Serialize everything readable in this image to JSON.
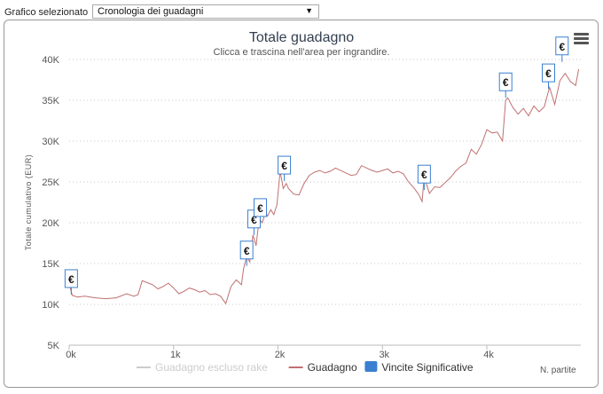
{
  "selector": {
    "label": "Grafico selezionato",
    "value": "Cronologia dei guadagni",
    "arrow": "▼"
  },
  "menu_icon": "hamburger-menu-icon",
  "chart_data": {
    "type": "line",
    "title": "Totale guadagno",
    "subtitle": "Clicca e trascina nell'area per ingrandire.",
    "ylabel": "Totale cumulativo (EUR)",
    "xlabel": "N. partite",
    "ylim": [
      5000,
      40000
    ],
    "yticks": [
      5000,
      10000,
      15000,
      20000,
      25000,
      30000,
      35000,
      40000
    ],
    "ytick_labels": [
      "5K",
      "10K",
      "15K",
      "20K",
      "25K",
      "30K",
      "35K",
      "40K"
    ],
    "xlim": [
      0,
      4900
    ],
    "xticks": [
      0,
      1000,
      2000,
      3000,
      4000
    ],
    "xtick_labels": [
      "0k",
      "1k",
      "2k",
      "3k",
      "4k"
    ],
    "grid": true,
    "legend_position": "bottom",
    "series": [
      {
        "name": "Guadagno escluso rake",
        "color": "#cccccc",
        "visible": false,
        "x": [],
        "values": []
      },
      {
        "name": "Guadagno",
        "color": "#c07070",
        "x": [
          0,
          30,
          80,
          150,
          250,
          350,
          450,
          550,
          620,
          660,
          700,
          760,
          800,
          850,
          900,
          950,
          1000,
          1050,
          1100,
          1150,
          1200,
          1250,
          1300,
          1350,
          1400,
          1450,
          1500,
          1550,
          1600,
          1650,
          1670,
          1700,
          1730,
          1760,
          1790,
          1820,
          1850,
          1880,
          1900,
          1930,
          1960,
          1990,
          2020,
          2050,
          2080,
          2100,
          2150,
          2200,
          2250,
          2300,
          2350,
          2400,
          2450,
          2500,
          2550,
          2600,
          2650,
          2700,
          2750,
          2800,
          2850,
          2900,
          2950,
          3000,
          3050,
          3100,
          3150,
          3200,
          3250,
          3300,
          3350,
          3380,
          3400,
          3420,
          3450,
          3500,
          3550,
          3600,
          3650,
          3700,
          3750,
          3800,
          3850,
          3900,
          3950,
          4000,
          4050,
          4100,
          4150,
          4180,
          4200,
          4250,
          4300,
          4350,
          4400,
          4450,
          4500,
          4550,
          4600,
          4650,
          4700,
          4750,
          4800,
          4850,
          4880
        ],
        "values": [
          12500,
          11100,
          10900,
          11000,
          10800,
          10700,
          10800,
          11300,
          11000,
          11200,
          12900,
          12600,
          12400,
          11900,
          12200,
          12600,
          12000,
          11300,
          11600,
          12000,
          11800,
          11500,
          11700,
          11200,
          11300,
          11000,
          10100,
          12200,
          13000,
          12400,
          14400,
          15800,
          15200,
          18500,
          17200,
          20500,
          20000,
          21300,
          20800,
          21600,
          21000,
          22200,
          26300,
          24200,
          24800,
          24200,
          23500,
          23400,
          24800,
          25800,
          26200,
          26400,
          26100,
          26300,
          26700,
          26400,
          26100,
          25800,
          25900,
          27000,
          26700,
          26400,
          26200,
          26400,
          26600,
          26100,
          26300,
          26000,
          25000,
          24300,
          23400,
          22600,
          25700,
          24800,
          23600,
          24400,
          24300,
          24900,
          25500,
          26300,
          26900,
          27300,
          29000,
          28400,
          29600,
          31400,
          31000,
          31100,
          30000,
          35000,
          35300,
          34100,
          33300,
          34000,
          33100,
          34300,
          33600,
          34200,
          36600,
          34500,
          37400,
          38300,
          37300,
          36800,
          38800
        ]
      }
    ],
    "significant_wins": {
      "name": "Vincite Significative",
      "color": "#3a7fd0",
      "symbol": "€",
      "x": [
        20,
        1700,
        1770,
        1830,
        2060,
        3400,
        4180,
        4590,
        4720
      ],
      "values": [
        11200,
        14700,
        18500,
        19900,
        25100,
        24000,
        35300,
        36400,
        39700
      ]
    }
  }
}
